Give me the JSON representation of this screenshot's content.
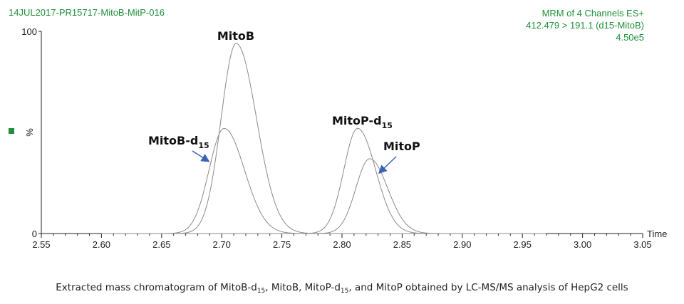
{
  "header": {
    "run_id": "14JUL2017-PR15717-MitoB-MitP-016",
    "channels": "MRM of 4 Channels ES+",
    "transition": "412.479 > 191.1 (d15-MitoB)",
    "intensity": "4.50e5"
  },
  "chart_data": {
    "type": "line",
    "title": "",
    "xlabel": "Time",
    "ylabel": "%",
    "xlim": [
      2.55,
      3.05
    ],
    "ylim": [
      0,
      100
    ],
    "x_ticks": [
      "2.55",
      "2.60",
      "2.65",
      "2.70",
      "2.75",
      "2.80",
      "2.85",
      "2.90",
      "2.95",
      "3.00",
      "3.05"
    ],
    "y_tick_labels": [
      "100",
      "%",
      "0"
    ],
    "grid": false,
    "series": [
      {
        "name": "MitoB",
        "peak_x": 2.712,
        "peak_y": 94
      },
      {
        "name": "MitoB-d15",
        "peak_x": 2.702,
        "peak_y": 52
      },
      {
        "name": "MitoP-d15",
        "peak_x": 2.813,
        "peak_y": 52
      },
      {
        "name": "MitoP",
        "peak_x": 2.823,
        "peak_y": 37
      }
    ],
    "annotations": [
      {
        "text": "MitoB",
        "sub": ""
      },
      {
        "text": "MitoB-d",
        "sub": "15"
      },
      {
        "text": "MitoP-d",
        "sub": "15"
      },
      {
        "text": "MitoP",
        "sub": ""
      }
    ]
  },
  "caption": {
    "p1": "Extracted mass chromatogram of MitoB-d",
    "s1": "15",
    "p2": ", MitoB, MitoP-d",
    "s2": "15",
    "p3": ", and MitoP obtained by LC-MS/MS analysis of HepG2 cells"
  },
  "colors": {
    "header_green": "#1f8f3a",
    "trace": "#8a8a8a",
    "arrow": "#3a63b8",
    "axis": "#222222"
  }
}
